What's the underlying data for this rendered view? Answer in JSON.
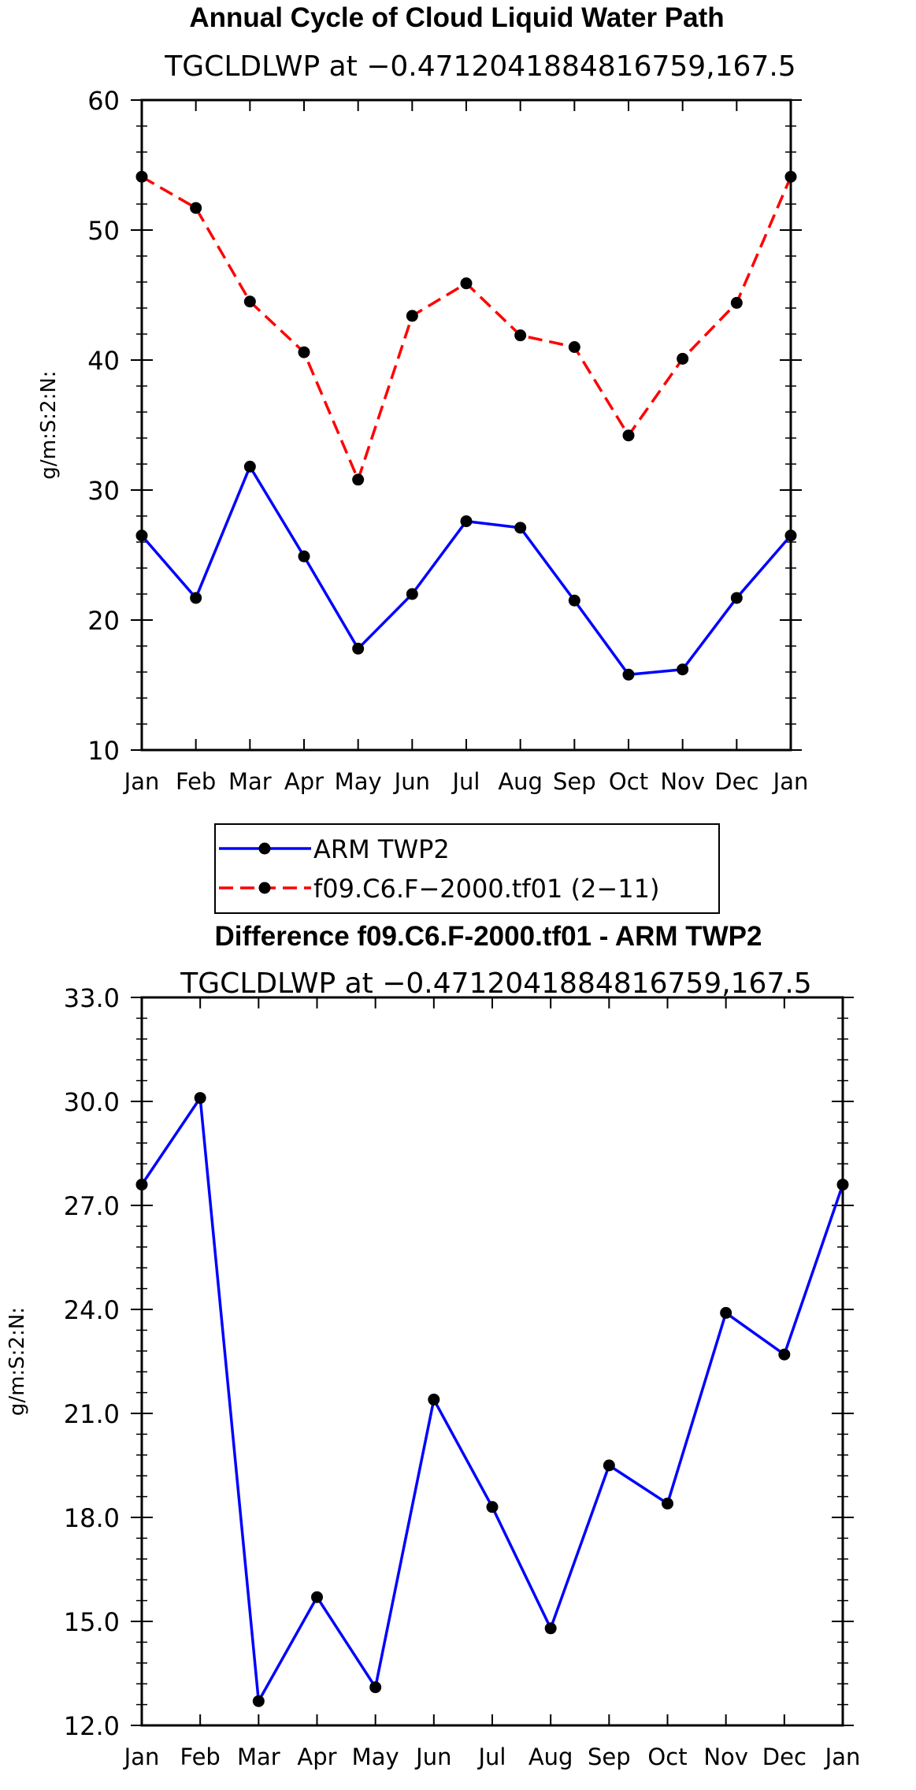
{
  "charts_meta": {
    "top_title": "Annual Cycle of Cloud Liquid Water Path",
    "top_subtitle": "TGCLDLWP at −0.4712041884816759,167.5",
    "bottom_title": "Difference f09.C6.F-2000.tf01 - ARM TWP2",
    "bottom_subtitle": "TGCLDLWP at −0.4712041884816759,167.5"
  },
  "chart_data": [
    {
      "type": "line",
      "title": "Annual Cycle of Cloud Liquid Water Path",
      "subtitle": "TGCLDLWP at −0.4712041884816759,167.5",
      "xlabel": "",
      "ylabel": "g/m:S:2:N:",
      "categories": [
        "Jan",
        "Feb",
        "Mar",
        "Apr",
        "May",
        "Jun",
        "Jul",
        "Aug",
        "Sep",
        "Oct",
        "Nov",
        "Dec",
        "Jan"
      ],
      "ylim": [
        10,
        60
      ],
      "yticks": [
        "10",
        "20",
        "30",
        "40",
        "50",
        "60"
      ],
      "legend_position": "below",
      "grid": false,
      "series": [
        {
          "name": "ARM TWP2",
          "color": "#0000ff",
          "dash": "solid",
          "values": [
            26.5,
            21.7,
            31.8,
            24.9,
            17.8,
            22.0,
            27.6,
            27.1,
            21.5,
            15.8,
            16.2,
            21.7,
            26.5
          ]
        },
        {
          "name": "f09.C6.F−2000.tf01 (2−11)",
          "color": "#ff0000",
          "dash": "dashed",
          "values": [
            54.1,
            51.7,
            44.5,
            40.6,
            30.8,
            43.4,
            45.9,
            41.9,
            41.0,
            34.2,
            40.1,
            44.4,
            54.1
          ]
        }
      ]
    },
    {
      "type": "line",
      "title": "Difference f09.C6.F-2000.tf01 - ARM TWP2",
      "subtitle": "TGCLDLWP at −0.4712041884816759,167.5",
      "xlabel": "",
      "ylabel": "g/m:S:2:N:",
      "categories": [
        "Jan",
        "Feb",
        "Mar",
        "Apr",
        "May",
        "Jun",
        "Jul",
        "Aug",
        "Sep",
        "Oct",
        "Nov",
        "Dec",
        "Jan"
      ],
      "ylim": [
        12,
        33
      ],
      "yticks": [
        "12.0",
        "15.0",
        "18.0",
        "21.0",
        "24.0",
        "27.0",
        "30.0",
        "33.0"
      ],
      "grid": false,
      "series": [
        {
          "color": "#0000ff",
          "dash": "solid",
          "values": [
            27.6,
            30.1,
            12.7,
            15.7,
            13.1,
            21.4,
            18.3,
            14.8,
            19.5,
            18.4,
            23.9,
            22.7,
            27.6
          ]
        }
      ]
    }
  ]
}
